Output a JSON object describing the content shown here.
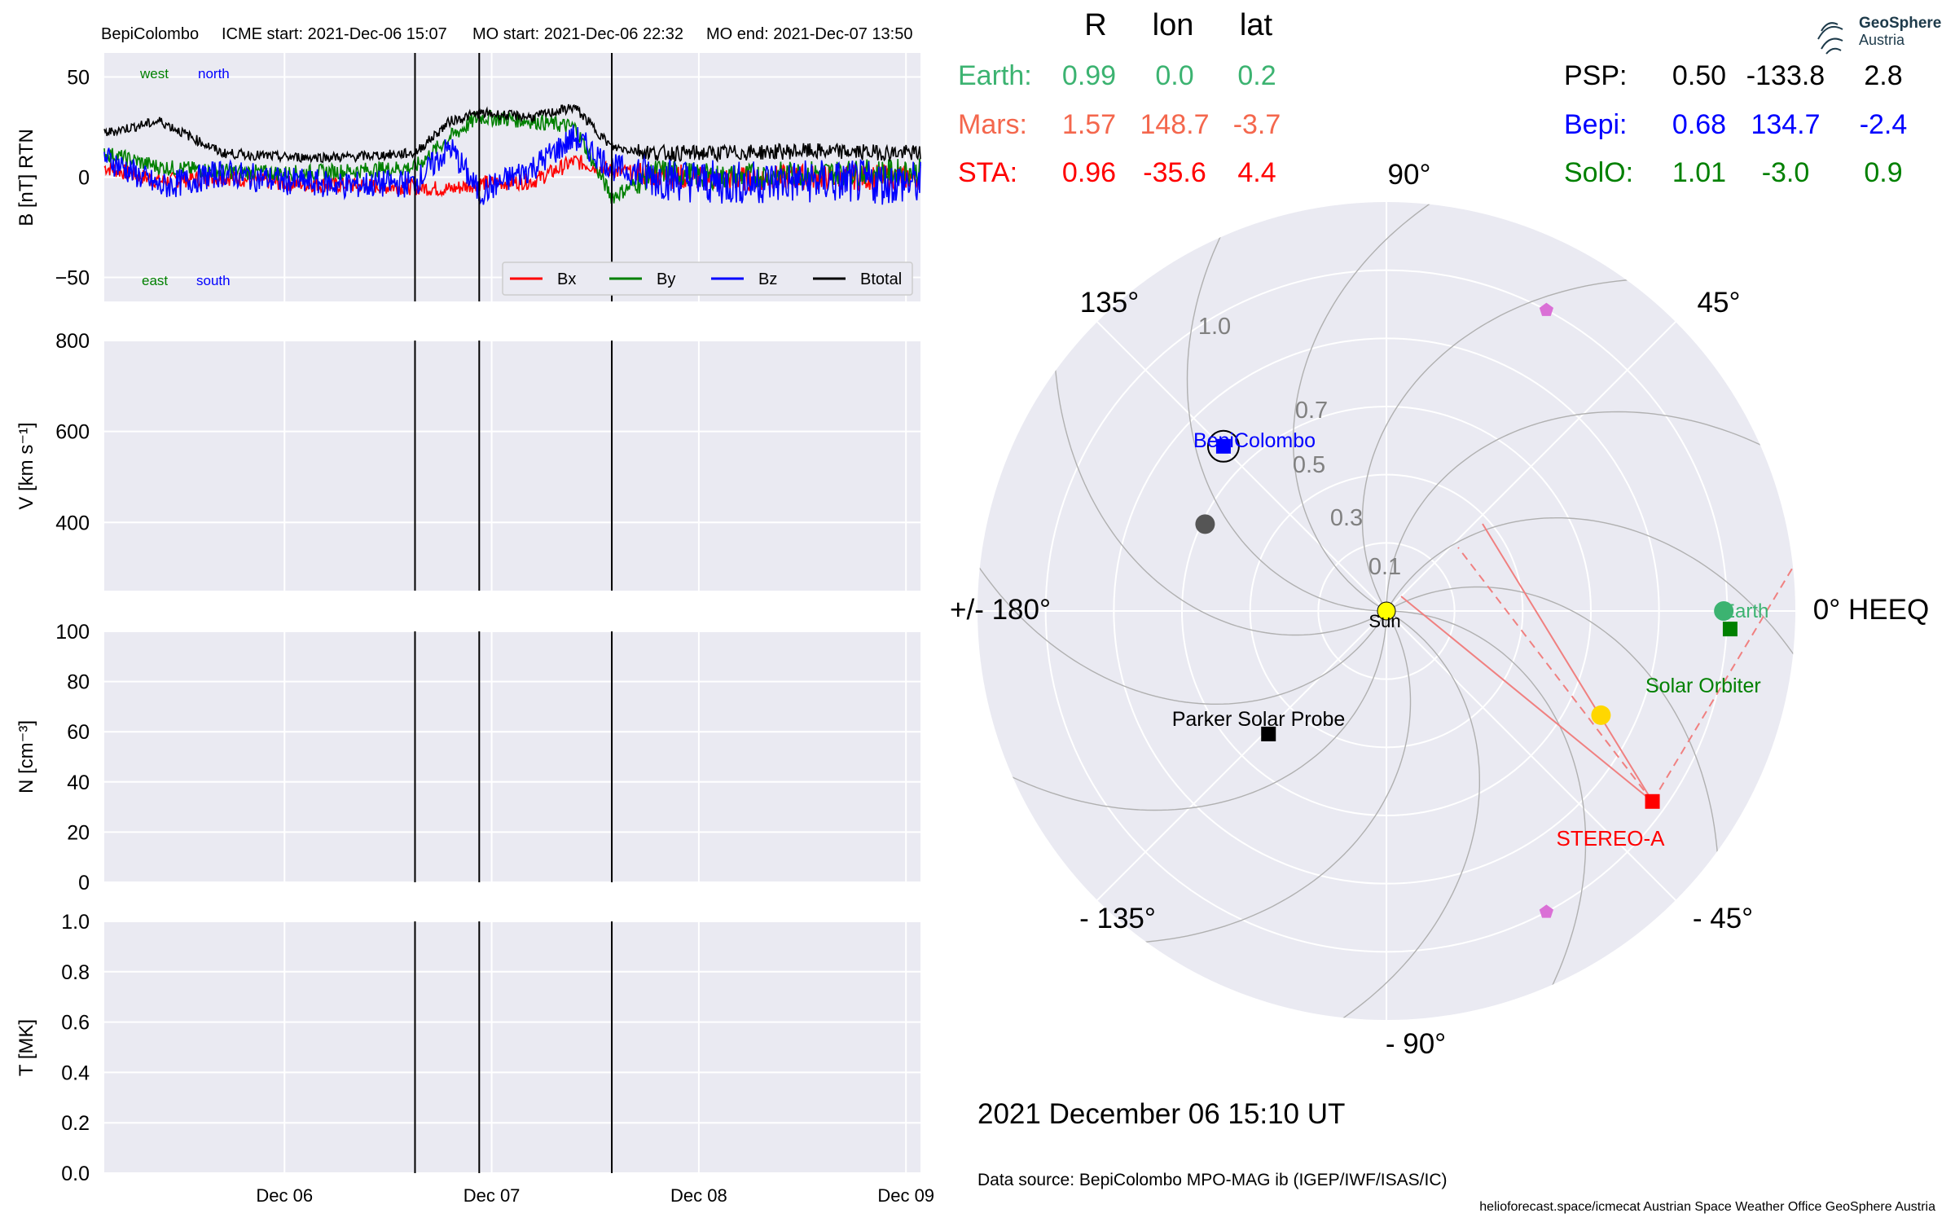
{
  "header": {
    "spacecraft": "BepiColombo",
    "icme_start": "ICME start: 2021-Dec-06 15:07",
    "mo_start": "MO start: 2021-Dec-06 22:32",
    "mo_end": "MO end: 2021-Dec-07 13:50"
  },
  "date_label": "2021 December 06  15:10 UT",
  "data_source": "Data source: BepiColombo MPO-MAG ib (IGEP/IWF/ISAS/IC)",
  "footer": "helioforecast.space/icmecat   Austrian Space Weather Office   GeoSphere Austria",
  "logo": {
    "line1": "GeoSphere",
    "line2": "Austria"
  },
  "colors": {
    "earth": "#3cb371",
    "mars": "#f4674d",
    "sta": "#ff0000",
    "psp": "#000000",
    "bepi": "#0000ff",
    "solo": "#008000",
    "panel_bg": "#eaeaf2",
    "grid": "#ffffff"
  },
  "positions_table": {
    "headers": [
      "R",
      "lon",
      "lat"
    ],
    "left": [
      {
        "name": "Earth:",
        "r": "0.99",
        "lon": "0.0",
        "lat": "0.2",
        "color_key": "earth"
      },
      {
        "name": "Mars:",
        "r": "1.57",
        "lon": "148.7",
        "lat": "-3.7",
        "color_key": "mars"
      },
      {
        "name": "STA:",
        "r": "0.96",
        "lon": "-35.6",
        "lat": "4.4",
        "color_key": "sta"
      }
    ],
    "right": [
      {
        "name": "PSP:",
        "r": "0.50",
        "lon": "-133.8",
        "lat": "2.8",
        "color_key": "psp"
      },
      {
        "name": "Bepi:",
        "r": "0.68",
        "lon": "134.7",
        "lat": "-2.4",
        "color_key": "bepi"
      },
      {
        "name": "SolO:",
        "r": "1.01",
        "lon": "-3.0",
        "lat": "0.9",
        "color_key": "solo"
      }
    ]
  },
  "chart_data": [
    {
      "type": "line",
      "ylabel": "B [nT] RTN",
      "ylim": [
        -62,
        62
      ],
      "yticks": [
        "50",
        "0",
        "−50"
      ],
      "ytick_values": [
        50,
        0,
        -50
      ],
      "xlim_days": [
        -0.87,
        3.07
      ],
      "x_tick_labels": [
        "Dec 06",
        "Dec 07",
        "Dec 08",
        "Dec 09"
      ],
      "x_tick_values": [
        0,
        1,
        2,
        3
      ],
      "event_lines": [
        "2021-Dec-06 15:07",
        "2021-Dec-06 22:32",
        "2021-Dec-07 13:50"
      ],
      "event_line_days": [
        0.63,
        0.94,
        1.58
      ],
      "annotations": {
        "west": "west",
        "north": "north",
        "east": "east",
        "south": "south"
      },
      "series": [
        {
          "name": "Bx",
          "color": "#ff0000",
          "sampled_days": [
            -0.87,
            -0.6,
            -0.3,
            0,
            0.3,
            0.63,
            0.8,
            0.94,
            1.2,
            1.4,
            1.58,
            1.8,
            2.1,
            2.5,
            3.07
          ],
          "sampled_values": [
            5,
            -2,
            0,
            -3,
            -4,
            -5,
            -6,
            -3,
            -2,
            8,
            3,
            1,
            -1,
            0,
            0
          ]
        },
        {
          "name": "By",
          "color": "#008000",
          "sampled_days": [
            -0.87,
            -0.6,
            -0.3,
            0,
            0.3,
            0.63,
            0.8,
            0.94,
            1.2,
            1.4,
            1.58,
            1.8,
            2.1,
            2.5,
            3.07
          ],
          "sampled_values": [
            12,
            5,
            3,
            2,
            3,
            5,
            20,
            30,
            28,
            25,
            -10,
            3,
            0,
            2,
            3
          ]
        },
        {
          "name": "Bz",
          "color": "#0000ff",
          "sampled_days": [
            -0.87,
            -0.6,
            -0.3,
            0,
            0.3,
            0.63,
            0.8,
            0.94,
            1.2,
            1.4,
            1.58,
            1.8,
            2.1,
            2.5,
            3.07
          ],
          "sampled_values": [
            10,
            -5,
            2,
            -2,
            -4,
            -3,
            15,
            -8,
            5,
            20,
            5,
            0,
            -3,
            -2,
            -3
          ]
        },
        {
          "name": "Btotal",
          "color": "#000000",
          "sampled_days": [
            -0.87,
            -0.6,
            -0.3,
            0,
            0.3,
            0.63,
            0.8,
            0.94,
            1.2,
            1.4,
            1.58,
            1.8,
            2.1,
            2.5,
            3.07
          ],
          "sampled_values": [
            22,
            28,
            12,
            10,
            10,
            12,
            28,
            32,
            30,
            35,
            15,
            12,
            12,
            13,
            12
          ]
        }
      ]
    },
    {
      "type": "line",
      "ylabel": "V [km s⁻¹]",
      "ylim": [
        250,
        800
      ],
      "yticks": [
        "800",
        "600",
        "400"
      ],
      "ytick_values": [
        800,
        600,
        400
      ],
      "series": []
    },
    {
      "type": "line",
      "ylabel": "N [cm⁻³]",
      "ylim": [
        0,
        100
      ],
      "yticks": [
        "100",
        "80",
        "60",
        "40",
        "20",
        "0"
      ],
      "ytick_values": [
        100,
        80,
        60,
        40,
        20,
        0
      ],
      "series": []
    },
    {
      "type": "line",
      "ylabel": "T [MK]",
      "ylim": [
        0,
        1
      ],
      "yticks": [
        "1.0",
        "0.8",
        "0.6",
        "0.4",
        "0.2",
        "0.0"
      ],
      "ytick_values": [
        1.0,
        0.8,
        0.6,
        0.4,
        0.2,
        0.0
      ],
      "series": []
    },
    {
      "type": "scatter",
      "projection": "polar",
      "rlim": [
        0,
        1.2
      ],
      "r_ticks": [
        "0.1",
        "0.3",
        "0.5",
        "0.7",
        "1.0"
      ],
      "r_tick_values": [
        0.1,
        0.3,
        0.5,
        0.7,
        1.0
      ],
      "angle_labels": [
        "0° HEEQ",
        "45°",
        "90°",
        "135°",
        "+/- 180°",
        "- 135°",
        "- 90°",
        "- 45°"
      ],
      "angle_values": [
        0,
        45,
        90,
        135,
        180,
        -135,
        -90,
        -45
      ],
      "objects": [
        {
          "label": "Sun",
          "r": 0,
          "lon": 0,
          "marker": "circle",
          "color": "#ffff00"
        },
        {
          "label": "Earth",
          "r": 0.99,
          "lon": 0.0,
          "marker": "circle",
          "color": "#3cb371"
        },
        {
          "label": "Solar Orbiter",
          "r": 1.01,
          "lon": -3.0,
          "marker": "square",
          "color": "#008000"
        },
        {
          "label": "STEREO-A",
          "r": 0.96,
          "lon": -35.6,
          "marker": "square",
          "color": "#ff0000"
        },
        {
          "label": "BepiColombo",
          "r": 0.68,
          "lon": 134.7,
          "marker": "square",
          "color": "#0000ff"
        },
        {
          "label": "Parker Solar Probe",
          "r": 0.5,
          "lon": -133.8,
          "marker": "square",
          "color": "#000000"
        },
        {
          "label": "",
          "r": 0.7,
          "lon": -25.9,
          "marker": "circle",
          "color": "#ffd700"
        },
        {
          "label": "",
          "r": 0.59,
          "lon": 154.4,
          "marker": "circle",
          "color": "#555555"
        },
        {
          "label": "",
          "r": 1.0,
          "lon": 62.0,
          "marker": "pentagon",
          "color": "#da70d6"
        },
        {
          "label": "",
          "r": 1.0,
          "lon": -62.0,
          "marker": "pentagon",
          "color": "#da70d6"
        }
      ]
    }
  ]
}
